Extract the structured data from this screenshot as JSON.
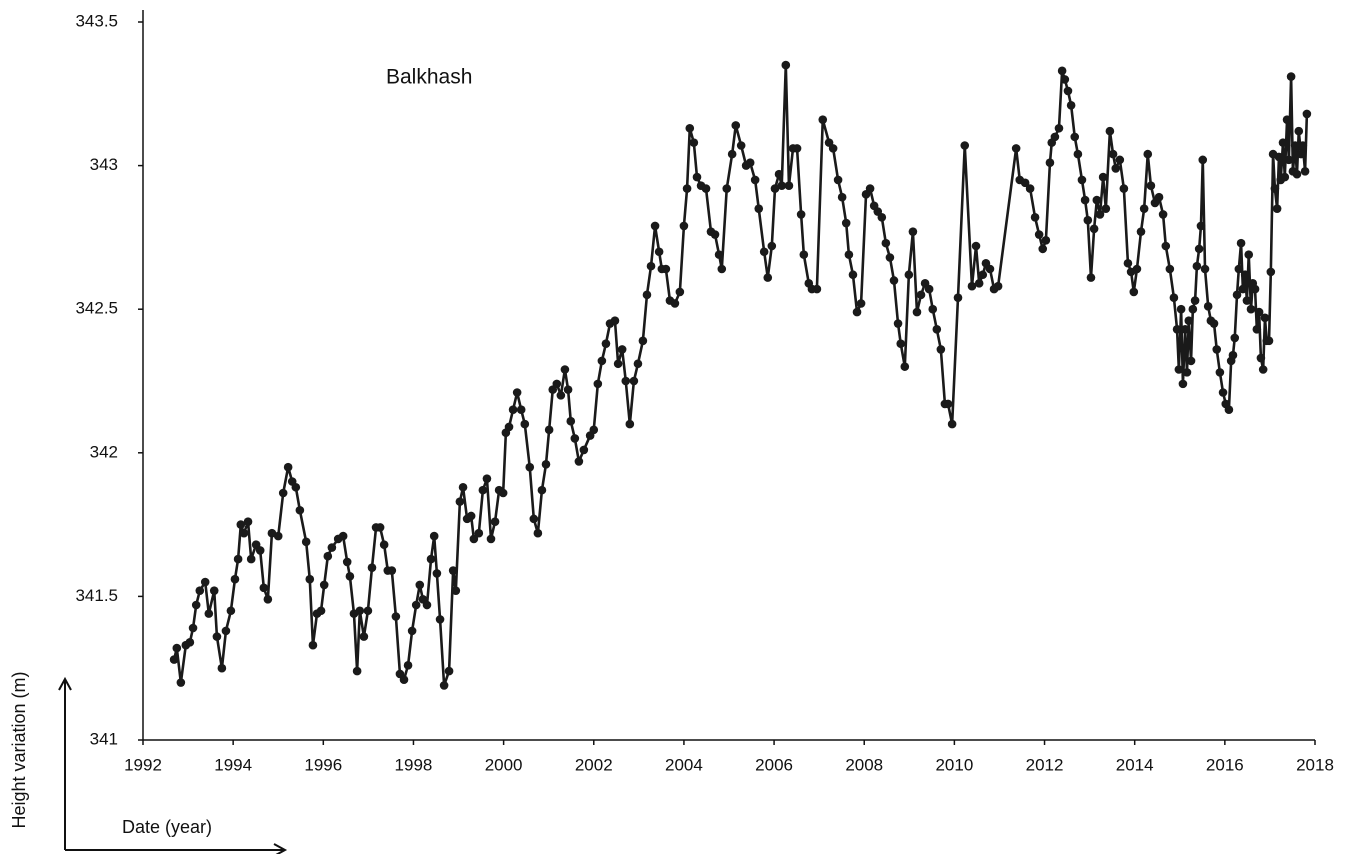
{
  "chart_data": {
    "type": "line",
    "title": "Balkhash",
    "x_label": "Date (year)",
    "y_label": "Height variation (m)",
    "color": "#1a1a1a",
    "markers": true,
    "grid": false,
    "xlim": [
      1992,
      2018
    ],
    "xticks": [
      1992,
      1994,
      1996,
      1998,
      2000,
      2002,
      2004,
      2006,
      2008,
      2010,
      2012,
      2014,
      2016,
      2018
    ],
    "ylim": [
      341,
      343.5
    ],
    "yticks": [
      341,
      341.5,
      342,
      342.5,
      343,
      343.5
    ],
    "x": [
      1992.69,
      1992.75,
      1992.84,
      1992.95,
      1993.04,
      1993.11,
      1993.18,
      1993.26,
      1993.38,
      1993.46,
      1993.58,
      1993.64,
      1993.75,
      1993.84,
      1993.95,
      1994.04,
      1994.11,
      1994.17,
      1994.24,
      1994.33,
      1994.4,
      1994.51,
      1994.6,
      1994.68,
      1994.77,
      1994.86,
      1995.0,
      1995.11,
      1995.22,
      1995.31,
      1995.39,
      1995.48,
      1995.62,
      1995.7,
      1995.77,
      1995.86,
      1995.95,
      1996.02,
      1996.1,
      1996.19,
      1996.33,
      1996.44,
      1996.53,
      1996.59,
      1996.68,
      1996.75,
      1996.81,
      1996.9,
      1996.99,
      1997.08,
      1997.17,
      1997.26,
      1997.35,
      1997.43,
      1997.52,
      1997.61,
      1997.7,
      1997.79,
      1997.88,
      1997.97,
      1998.06,
      1998.14,
      1998.21,
      1998.3,
      1998.39,
      1998.46,
      1998.52,
      1998.59,
      1998.68,
      1998.79,
      1998.88,
      1998.94,
      1999.03,
      1999.1,
      1999.19,
      1999.28,
      1999.34,
      1999.45,
      1999.54,
      1999.63,
      1999.72,
      1999.81,
      1999.9,
      1999.99,
      2000.05,
      2000.12,
      2000.21,
      2000.3,
      2000.39,
      2000.47,
      2000.58,
      2000.67,
      2000.76,
      2000.85,
      2000.94,
      2001.01,
      2001.09,
      2001.18,
      2001.27,
      2001.36,
      2001.43,
      2001.49,
      2001.58,
      2001.67,
      2001.78,
      2001.92,
      2002.0,
      2002.09,
      2002.18,
      2002.27,
      2002.36,
      2002.47,
      2002.54,
      2002.63,
      2002.71,
      2002.8,
      2002.89,
      2002.98,
      2003.09,
      2003.18,
      2003.27,
      2003.36,
      2003.45,
      2003.51,
      2003.6,
      2003.69,
      2003.8,
      2003.91,
      2004.0,
      2004.07,
      2004.13,
      2004.22,
      2004.29,
      2004.38,
      2004.49,
      2004.6,
      2004.69,
      2004.78,
      2004.84,
      2004.95,
      2005.07,
      2005.15,
      2005.27,
      2005.38,
      2005.47,
      2005.58,
      2005.66,
      2005.78,
      2005.86,
      2005.95,
      2006.02,
      2006.11,
      2006.17,
      2006.26,
      2006.33,
      2006.42,
      2006.51,
      2006.6,
      2006.66,
      2006.77,
      2006.84,
      2006.95,
      2007.08,
      2007.22,
      2007.31,
      2007.42,
      2007.51,
      2007.6,
      2007.66,
      2007.75,
      2007.84,
      2007.93,
      2008.04,
      2008.13,
      2008.22,
      2008.3,
      2008.39,
      2008.48,
      2008.57,
      2008.66,
      2008.75,
      2008.81,
      2008.9,
      2008.99,
      2009.08,
      2009.17,
      2009.26,
      2009.35,
      2009.44,
      2009.52,
      2009.61,
      2009.7,
      2009.79,
      2009.86,
      2009.95,
      2010.08,
      2010.23,
      2010.39,
      2010.48,
      2010.55,
      2010.63,
      2010.7,
      2010.79,
      2010.88,
      2010.97,
      2011.37,
      2011.45,
      2011.57,
      2011.68,
      2011.79,
      2011.88,
      2011.96,
      2012.03,
      2012.12,
      2012.16,
      2012.23,
      2012.32,
      2012.39,
      2012.45,
      2012.52,
      2012.59,
      2012.67,
      2012.74,
      2012.83,
      2012.9,
      2012.96,
      2013.03,
      2013.1,
      2013.16,
      2013.23,
      2013.3,
      2013.36,
      2013.45,
      2013.52,
      2013.58,
      2013.67,
      2013.76,
      2013.85,
      2013.92,
      2013.98,
      2014.05,
      2014.14,
      2014.21,
      2014.29,
      2014.36,
      2014.45,
      2014.54,
      2014.63,
      2014.69,
      2014.78,
      2014.87,
      2014.94,
      2014.98,
      2015.03,
      2015.07,
      2015.12,
      2015.16,
      2015.2,
      2015.25,
      2015.29,
      2015.34,
      2015.38,
      2015.43,
      2015.47,
      2015.51,
      2015.56,
      2015.63,
      2015.69,
      2015.76,
      2015.82,
      2015.89,
      2015.96,
      2016.02,
      2016.09,
      2016.14,
      2016.18,
      2016.22,
      2016.27,
      2016.31,
      2016.36,
      2016.4,
      2016.45,
      2016.49,
      2016.53,
      2016.58,
      2016.62,
      2016.67,
      2016.71,
      2016.76,
      2016.8,
      2016.85,
      2016.89,
      2016.93,
      2016.98,
      2017.02,
      2017.07,
      2017.11,
      2017.16,
      2017.2,
      2017.24,
      2017.29,
      2017.33,
      2017.38,
      2017.42,
      2017.47,
      2017.51,
      2017.56,
      2017.6,
      2017.64,
      2017.69,
      2017.73,
      2017.78,
      2017.82
    ],
    "values": [
      341.28,
      341.32,
      341.2,
      341.33,
      341.34,
      341.39,
      341.47,
      341.52,
      341.55,
      341.44,
      341.52,
      341.36,
      341.25,
      341.38,
      341.45,
      341.56,
      341.63,
      341.75,
      341.72,
      341.76,
      341.63,
      341.68,
      341.66,
      341.53,
      341.49,
      341.72,
      341.71,
      341.86,
      341.95,
      341.9,
      341.88,
      341.8,
      341.69,
      341.56,
      341.33,
      341.44,
      341.45,
      341.54,
      341.64,
      341.67,
      341.7,
      341.71,
      341.62,
      341.57,
      341.44,
      341.24,
      341.45,
      341.36,
      341.45,
      341.6,
      341.74,
      341.74,
      341.68,
      341.59,
      341.59,
      341.43,
      341.23,
      341.21,
      341.26,
      341.38,
      341.47,
      341.54,
      341.49,
      341.47,
      341.63,
      341.71,
      341.58,
      341.42,
      341.19,
      341.24,
      341.59,
      341.52,
      341.83,
      341.88,
      341.77,
      341.78,
      341.7,
      341.72,
      341.87,
      341.91,
      341.7,
      341.76,
      341.87,
      341.86,
      342.07,
      342.09,
      342.15,
      342.21,
      342.15,
      342.1,
      341.95,
      341.77,
      341.72,
      341.87,
      341.96,
      342.08,
      342.22,
      342.24,
      342.2,
      342.29,
      342.22,
      342.11,
      342.05,
      341.97,
      342.01,
      342.06,
      342.08,
      342.24,
      342.32,
      342.38,
      342.45,
      342.46,
      342.31,
      342.36,
      342.25,
      342.1,
      342.25,
      342.31,
      342.39,
      342.55,
      342.65,
      342.79,
      342.7,
      342.64,
      342.64,
      342.53,
      342.52,
      342.56,
      342.79,
      342.92,
      343.13,
      343.08,
      342.96,
      342.93,
      342.92,
      342.77,
      342.76,
      342.69,
      342.64,
      342.92,
      343.04,
      343.14,
      343.07,
      343.0,
      343.01,
      342.95,
      342.85,
      342.7,
      342.61,
      342.72,
      342.92,
      342.97,
      342.93,
      343.35,
      342.93,
      343.06,
      343.06,
      342.83,
      342.69,
      342.59,
      342.57,
      342.57,
      343.16,
      343.08,
      343.06,
      342.95,
      342.89,
      342.8,
      342.69,
      342.62,
      342.49,
      342.52,
      342.9,
      342.92,
      342.86,
      342.84,
      342.82,
      342.73,
      342.68,
      342.6,
      342.45,
      342.38,
      342.3,
      342.62,
      342.77,
      342.49,
      342.55,
      342.59,
      342.57,
      342.5,
      342.43,
      342.36,
      342.17,
      342.17,
      342.1,
      342.54,
      343.07,
      342.58,
      342.72,
      342.59,
      342.62,
      342.66,
      342.64,
      342.57,
      342.58,
      343.06,
      342.95,
      342.94,
      342.92,
      342.82,
      342.76,
      342.71,
      342.74,
      343.01,
      343.08,
      343.1,
      343.13,
      343.33,
      343.3,
      343.26,
      343.21,
      343.1,
      343.04,
      342.95,
      342.88,
      342.81,
      342.61,
      342.78,
      342.88,
      342.83,
      342.96,
      342.85,
      343.12,
      343.04,
      342.99,
      343.02,
      342.92,
      342.66,
      342.63,
      342.56,
      342.64,
      342.77,
      342.85,
      343.04,
      342.93,
      342.87,
      342.89,
      342.83,
      342.72,
      342.64,
      342.54,
      342.43,
      342.29,
      342.5,
      342.24,
      342.43,
      342.28,
      342.46,
      342.32,
      342.5,
      342.53,
      342.65,
      342.71,
      342.79,
      343.02,
      342.64,
      342.51,
      342.46,
      342.45,
      342.36,
      342.28,
      342.21,
      342.17,
      342.15,
      342.32,
      342.34,
      342.4,
      342.55,
      342.64,
      342.73,
      342.57,
      342.62,
      342.53,
      342.69,
      342.5,
      342.59,
      342.57,
      342.43,
      342.49,
      342.33,
      342.29,
      342.47,
      342.39,
      342.39,
      342.63,
      343.04,
      342.92,
      342.85,
      343.03,
      342.95,
      343.08,
      342.96,
      343.16,
      343.02,
      343.31,
      342.98,
      343.07,
      342.97,
      343.12,
      343.04,
      343.07,
      342.98,
      343.18
    ]
  }
}
